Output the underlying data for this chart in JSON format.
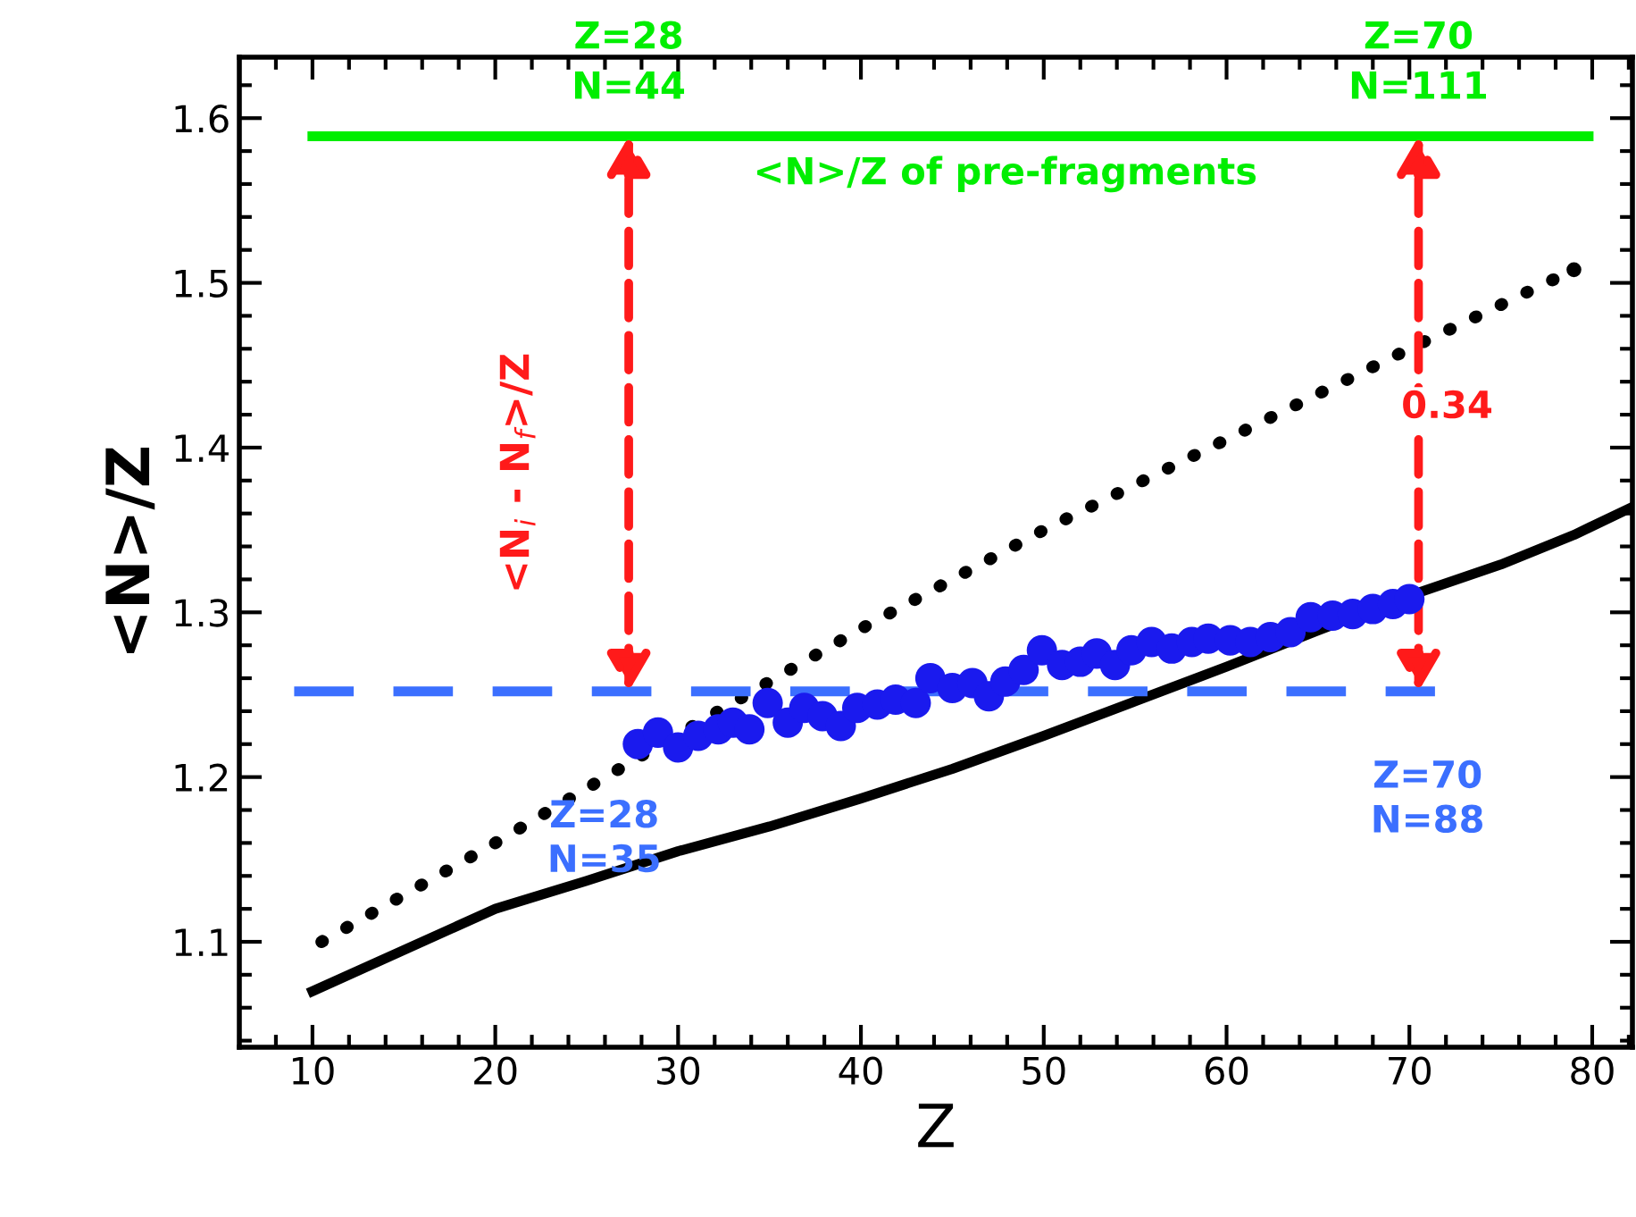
{
  "chart_data": {
    "type": "line",
    "xlabel": "Z",
    "ylabel": "<N>/Z",
    "xlim": [
      6,
      82.2
    ],
    "ylim": [
      1.036,
      1.637
    ],
    "xticks": [
      10,
      20,
      30,
      40,
      50,
      60,
      70,
      80
    ],
    "yticks": [
      1.1,
      1.2,
      1.3,
      1.4,
      1.5,
      1.6
    ],
    "grid": false,
    "legend": false,
    "series": [
      {
        "color": "#000000",
        "line_style": "solid",
        "x": [
          10,
          15,
          20,
          25,
          30,
          35,
          40,
          45,
          50,
          55,
          60,
          65,
          70,
          75,
          79,
          82.2
        ],
        "values": [
          1.07,
          1.095,
          1.12,
          1.137,
          1.155,
          1.17,
          1.187,
          1.205,
          1.225,
          1.246,
          1.267,
          1.289,
          1.31,
          1.329,
          1.347,
          1.364
        ]
      },
      {
        "color": "#000000",
        "line_style": "dotted",
        "x": [
          10.5,
          20,
          28,
          40,
          50,
          60,
          70,
          79
        ],
        "values": [
          1.1,
          1.16,
          1.213,
          1.29,
          1.35,
          1.405,
          1.46,
          1.508
        ]
      },
      {
        "name": "<N>/Z of pre-fragments",
        "color": "#00ee00",
        "line_style": "solid",
        "x": [
          10,
          79.8
        ],
        "values": [
          1.589,
          1.589
        ]
      },
      {
        "color": "#3b6fff",
        "line_style": "dashed",
        "x": [
          9,
          71.4
        ],
        "values": [
          1.252,
          1.252
        ]
      },
      {
        "type": "scatter",
        "color": "#1a1aee",
        "marker": "circle",
        "x": [
          27.8,
          28.9,
          30.0,
          31.1,
          32.2,
          33.0,
          33.9,
          34.9,
          36.0,
          36.9,
          37.9,
          38.9,
          39.8,
          40.9,
          41.9,
          43.0,
          43.8,
          45.0,
          46.1,
          47.0,
          47.9,
          48.9,
          49.9,
          51.0,
          52.0,
          52.9,
          53.9,
          54.8,
          55.9,
          57.0,
          58.1,
          59.0,
          60.2,
          61.3,
          62.4,
          63.5,
          64.6,
          65.8,
          66.9,
          68.0,
          69.1,
          70.0
        ],
        "values": [
          1.22,
          1.227,
          1.218,
          1.225,
          1.229,
          1.233,
          1.229,
          1.245,
          1.233,
          1.242,
          1.237,
          1.231,
          1.242,
          1.244,
          1.247,
          1.245,
          1.26,
          1.254,
          1.257,
          1.249,
          1.258,
          1.265,
          1.277,
          1.268,
          1.27,
          1.275,
          1.268,
          1.277,
          1.282,
          1.278,
          1.282,
          1.284,
          1.283,
          1.282,
          1.285,
          1.288,
          1.297,
          1.298,
          1.299,
          1.302,
          1.305,
          1.308
        ]
      }
    ],
    "annotations": [
      {
        "text": "Z=28\nN=44",
        "x": 27.3,
        "y": 1.589
      },
      {
        "text": "Z=70\nN=111",
        "x": 70.5,
        "y": 1.589
      },
      "Z=28\nN=35",
      "Z=70\nN=88",
      "0.34",
      "<N$_{i}$ - N$_{f}$>/Z"
    ]
  }
}
